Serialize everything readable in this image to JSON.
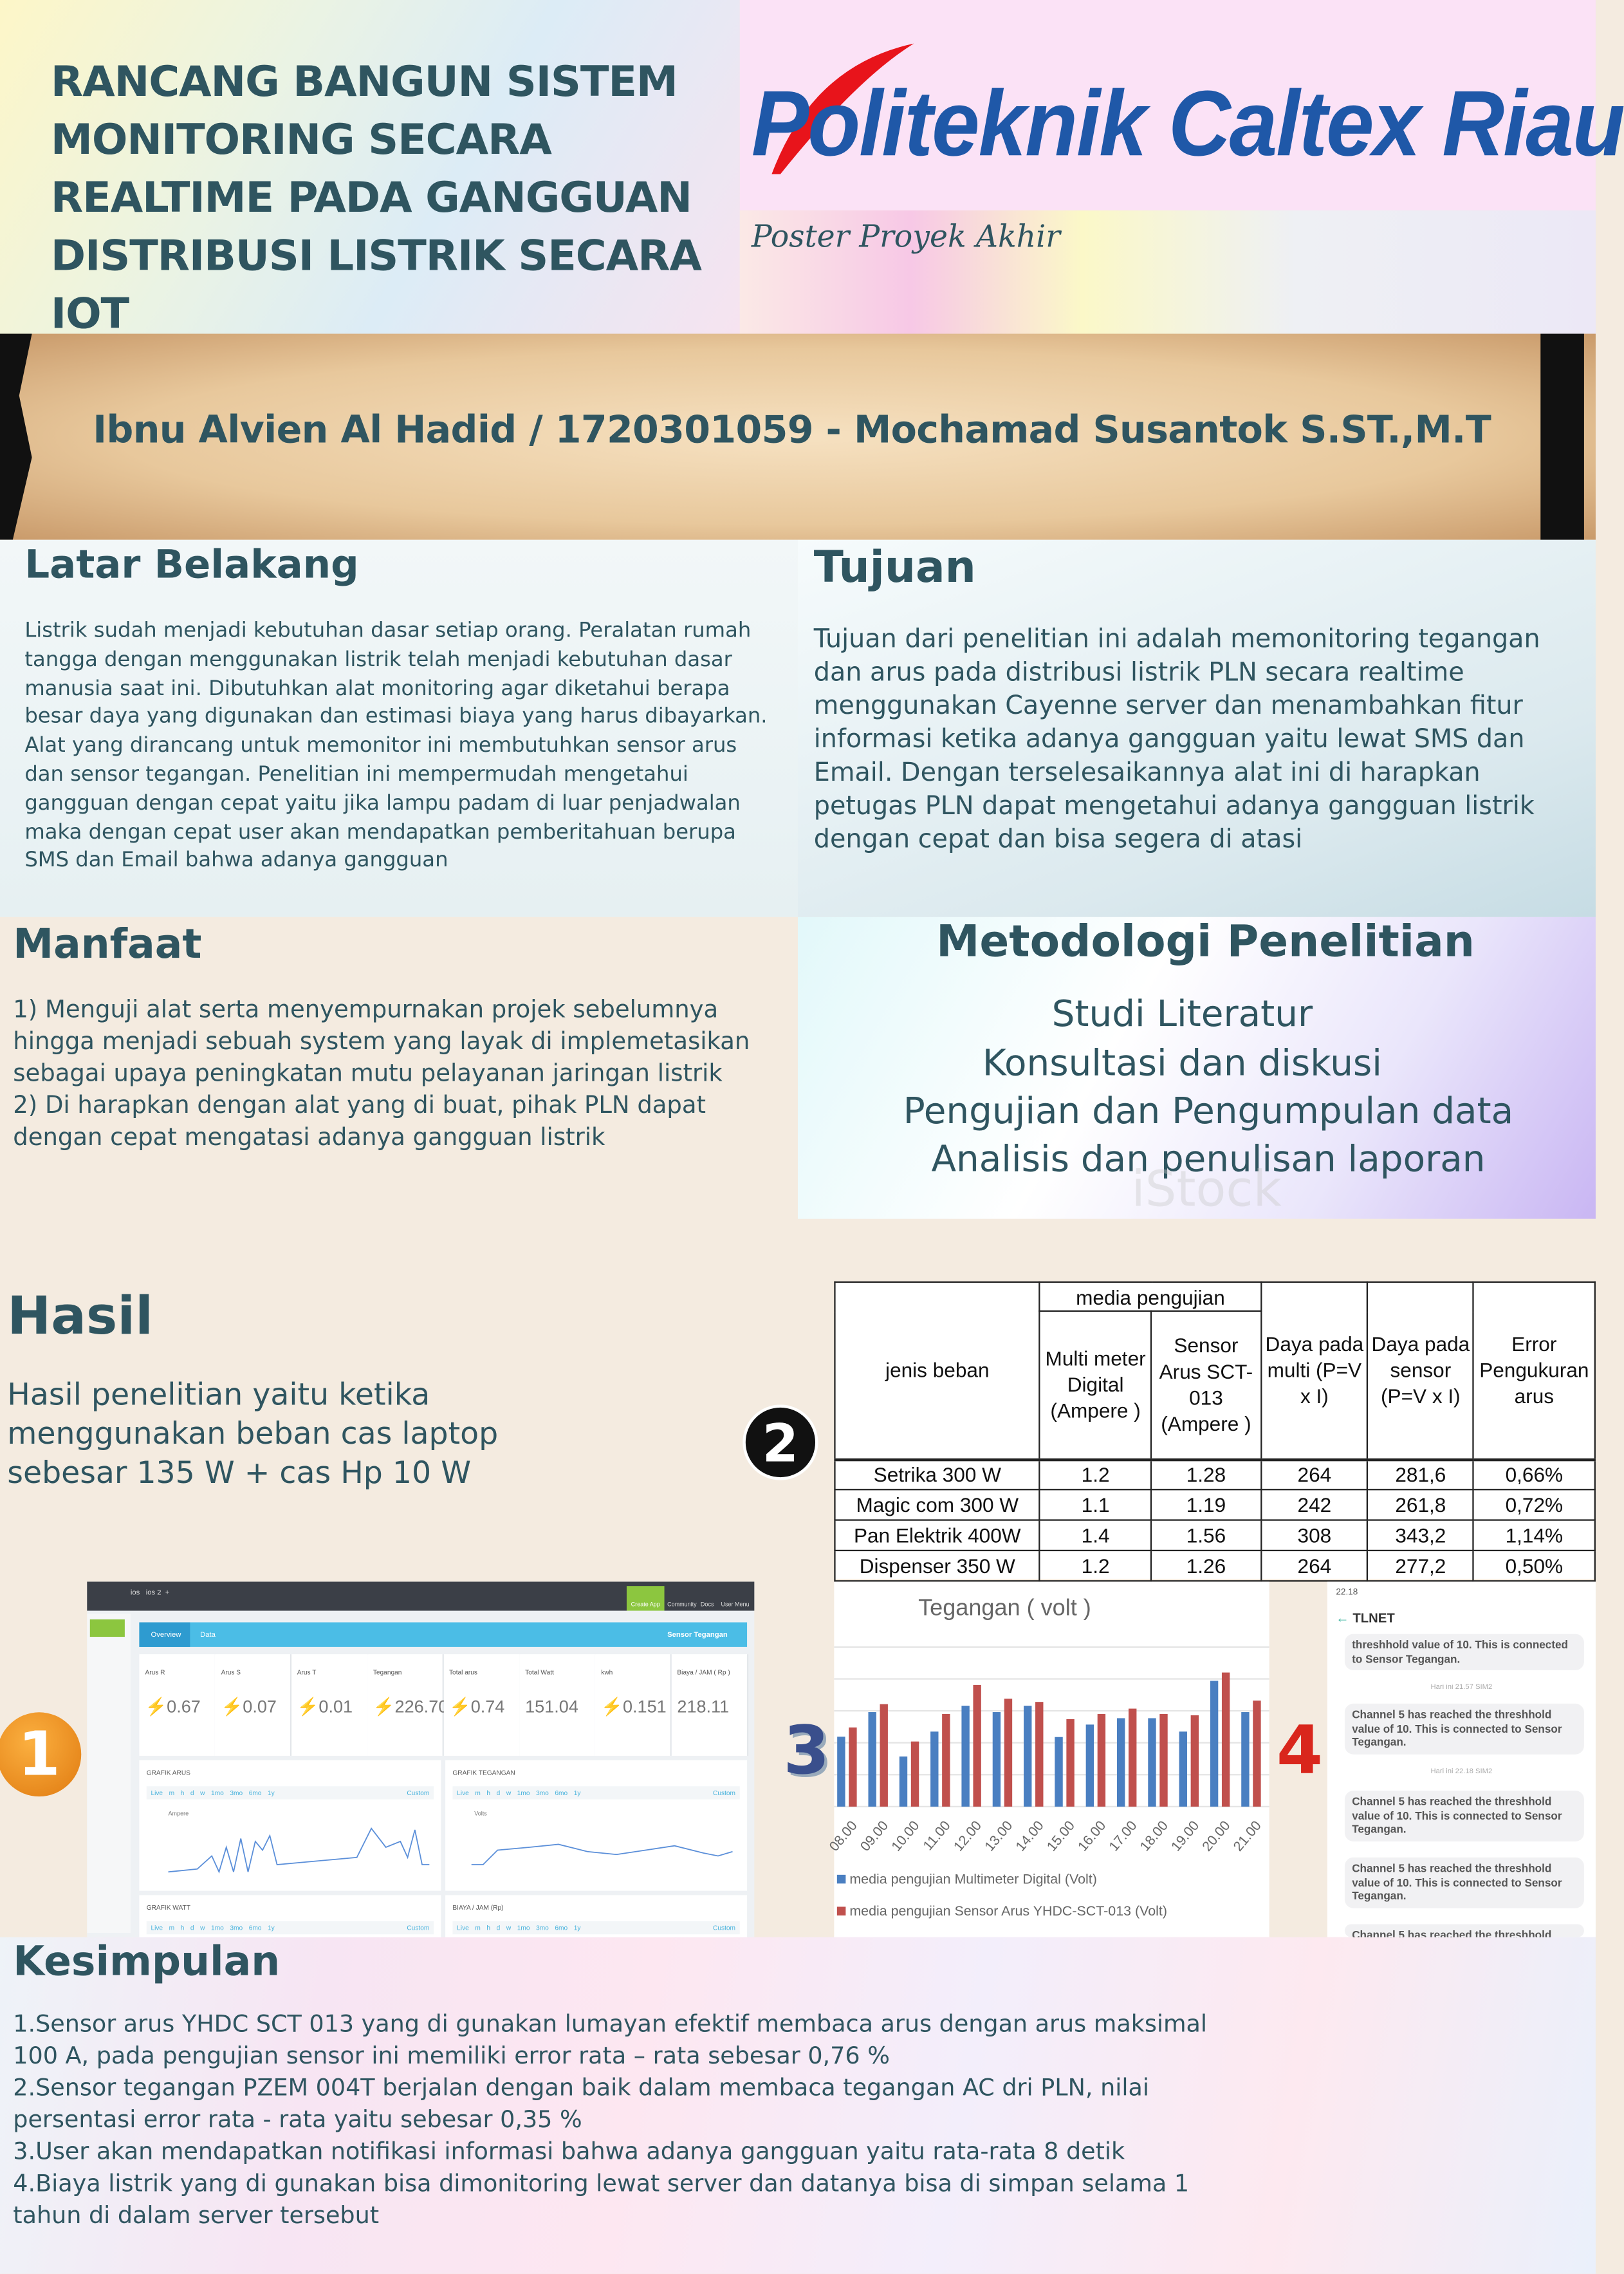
{
  "header": {
    "title": "RANCANG BANGUN SISTEM MONITORING SECARA REALTIME PADA GANGGUAN DISTRIBUSI LISTRIK SECARA IOT",
    "logo_text": "Politeknik Caltex Riau",
    "subtitle": "Poster Proyek Akhir",
    "authors": "Ibnu Alvien Al Hadid / 1720301059 - Mochamad Susantok S.ST.,M.T",
    "colors": {
      "logo_blue": "#1f58a8",
      "swoosh_red": "#e8141b",
      "text": "#2f5560"
    }
  },
  "latar": {
    "title": "Latar Belakang",
    "text": "Listrik sudah menjadi kebutuhan dasar setiap orang. Peralatan rumah tangga dengan menggunakan listrik telah menjadi kebutuhan dasar manusia saat ini. Dibutuhkan alat monitoring agar diketahui berapa besar daya yang digunakan dan estimasi biaya yang harus dibayarkan. Alat yang dirancang untuk memonitor ini membutuhkan sensor arus dan sensor tegangan. Penelitian ini mempermudah mengetahui gangguan dengan cepat yaitu jika lampu padam di luar penjadwalan maka dengan cepat user akan mendapatkan pemberitahuan berupa SMS dan Email bahwa adanya gangguan"
  },
  "tujuan": {
    "title": "Tujuan",
    "text": "Tujuan dari penelitian ini adalah memonitoring tegangan dan arus pada distribusi listrik PLN secara realtime menggunakan Cayenne server  dan menambahkan fitur informasi ketika adanya gangguan yaitu lewat SMS dan Email. Dengan terselesaikannya alat ini di harapkan petugas PLN dapat mengetahui adanya gangguan listrik dengan cepat dan bisa segera di atasi"
  },
  "manfaat": {
    "title": "Manfaat",
    "items": [
      "1) Menguji alat serta menyempurnakan projek sebelumnya hingga menjadi sebuah system yang layak di implemetasikan sebagai upaya peningkatan mutu pelayanan jaringan listrik",
      "2) Di harapkan dengan alat yang di buat, pihak PLN dapat dengan cepat mengatasi adanya gangguan listrik"
    ]
  },
  "metodologi": {
    "title": "Metodologi Penelitian",
    "items": [
      "Studi Literatur",
      "Konsultasi dan diskusi",
      "Pengujian dan Pengumpulan data",
      "Analisis dan penulisan laporan"
    ],
    "watermark": "iStock"
  },
  "hasil": {
    "title": "Hasil",
    "text": "Hasil penelitian yaitu ketika menggunakan beban cas laptop sebesar 135 W + cas Hp 10 W",
    "badges": [
      "1",
      "2",
      "3",
      "4"
    ]
  },
  "table": {
    "group_header": "media pengujian",
    "headers": [
      "jenis beban",
      "Multi meter Digital (Ampere )",
      "Sensor Arus SCT-013 (Ampere )",
      "Daya pada multi (P=V x I)",
      "Daya pada sensor (P=V x I)",
      "Error Pengukuran arus"
    ],
    "rows": [
      [
        "Setrika 300 W",
        "1.2",
        "1.28",
        "264",
        "281,6",
        "0,66%"
      ],
      [
        "Magic com 300 W",
        "1.1",
        "1.19",
        "242",
        "261,8",
        "0,72%"
      ],
      [
        "Pan Elektrik 400W",
        "1.4",
        "1.56",
        "308",
        "343,2",
        "1,14%"
      ],
      [
        "Dispenser 350 W",
        "1.2",
        "1.26",
        "264",
        "277,2",
        "0,50%"
      ]
    ]
  },
  "dashboard": {
    "nav": [
      "Create App",
      "Community",
      "Docs",
      "User Menu"
    ],
    "tabs": [
      "Overview",
      "Data"
    ],
    "device": "Sensor Tegangan",
    "tiles": [
      {
        "label": "Arus R",
        "value": "0.67"
      },
      {
        "label": "Arus S",
        "value": "0.07"
      },
      {
        "label": "Arus T",
        "value": "0.01"
      },
      {
        "label": "Tegangan",
        "value": "226.70"
      },
      {
        "label": "Total arus",
        "value": "0.74"
      },
      {
        "label": "Total Watt",
        "value": "151.04"
      },
      {
        "label": "kwh",
        "value": "0.151"
      },
      {
        "label": "Biaya / JAM ( Rp )",
        "value": "218.11"
      }
    ],
    "panels": [
      "GRAFIK ARUS",
      "GRAFIK TEGANGAN",
      "GRAFIK WATT",
      "BIAYA / JAM (Rp)"
    ],
    "ranges": "Live m h d w 1mo 3mo 6mo 1y",
    "custom": "Custom",
    "legends": [
      "Ampere",
      "Volts"
    ]
  },
  "chart_data": {
    "type": "bar",
    "title": "Tegangan ( volt )",
    "categories": [
      "08.00",
      "09.00",
      "10.00",
      "11.00",
      "12.00",
      "13.00",
      "14.00",
      "15.00",
      "16.00",
      "17.00",
      "18.00",
      "19.00",
      "20.00",
      "21.00"
    ],
    "series": [
      {
        "name": "media pengujian Multimeter Digital (Volt)",
        "color": "#4a7fc1",
        "values": [
          2.19,
          2.96,
          1.57,
          2.35,
          3.16,
          2.96,
          3.16,
          2.18,
          2.57,
          2.77,
          2.77,
          2.35,
          3.94,
          2.96
        ]
      },
      {
        "name": "media pengujian Sensor Arus YHDC-SCT-013 (Volt)",
        "color": "#c0504d",
        "values": [
          2.48,
          3.21,
          2.04,
          2.9,
          3.81,
          3.38,
          3.28,
          2.74,
          2.9,
          3.07,
          2.9,
          2.86,
          4.2,
          3.32
        ]
      }
    ],
    "ylim": [
      0,
      5
    ],
    "grid": true,
    "legend": "bottom",
    "y_ticks_shown": false
  },
  "sms": {
    "time": "22.18",
    "sender": "TLNET",
    "message": "Channel 5 has reached the threshhold value of 10. This is connected to Sensor Tegangan.",
    "partial_top": "threshhold value of 10. This is connected to Sensor Tegangan.",
    "stamps": [
      "Hari ini 21.57 SIM2",
      "Hari ini 22.18 SIM2"
    ]
  },
  "kesimpulan": {
    "title": "Kesimpulan",
    "items": [
      "1.Sensor arus YHDC SCT 013 yang di gunakan lumayan efektif membaca arus dengan arus maksimal 100 A, pada pengujian sensor ini memiliki error rata – rata sebesar 0,76 %",
      "2.Sensor tegangan PZEM 004T berjalan dengan baik dalam membaca tegangan AC dri PLN, nilai persentasi error rata - rata yaitu sebesar 0,35 %",
      "3.User akan mendapatkan notifikasi informasi bahwa adanya gangguan yaitu rata-rata 8 detik",
      "4.Biaya listrik yang di gunakan bisa dimonitoring lewat server dan datanya bisa di simpan selama 1 tahun di dalam server tersebut"
    ]
  }
}
